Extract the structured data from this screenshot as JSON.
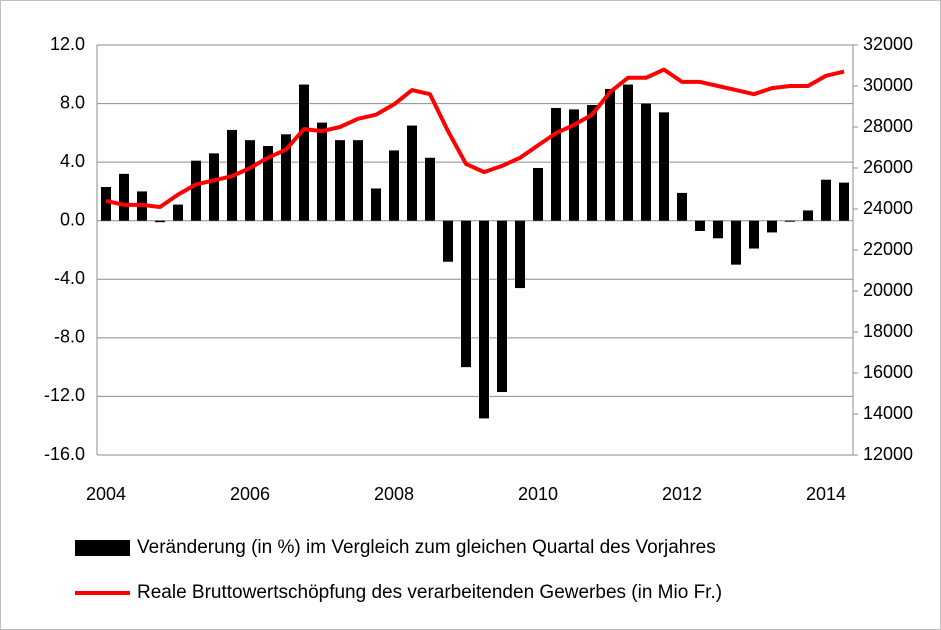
{
  "chart_data": {
    "type": "bar_line",
    "categories": [
      "2004",
      null,
      null,
      null,
      null,
      null,
      null,
      null,
      "2006",
      null,
      null,
      null,
      null,
      null,
      null,
      null,
      "2008",
      null,
      null,
      null,
      null,
      null,
      null,
      null,
      "2010",
      null,
      null,
      null,
      null,
      null,
      null,
      null,
      "2012",
      null,
      null,
      null,
      null,
      null,
      null,
      null,
      "2014",
      null
    ],
    "series": [
      {
        "name": "Veränderung (in %) im Vergleich zum gleichen Quartal des Vorjahres",
        "type": "bar",
        "color": "#000000",
        "values": [
          2.3,
          3.2,
          2.0,
          -0.1,
          1.1,
          4.1,
          4.6,
          6.2,
          5.5,
          5.1,
          5.9,
          9.3,
          6.7,
          5.5,
          5.5,
          2.2,
          4.8,
          6.5,
          4.3,
          -2.8,
          -10.0,
          -13.5,
          -11.7,
          -4.6,
          3.6,
          7.7,
          7.6,
          7.9,
          9.0,
          9.3,
          8.0,
          7.4,
          1.9,
          -0.7,
          -1.2,
          -3.0,
          -1.9,
          -0.8,
          0.0,
          0.7,
          2.8,
          2.6
        ]
      },
      {
        "name": "Reale Bruttowertschöpfung des verarbeitenden Gewerbes (in Mio Fr.)",
        "type": "line",
        "axis": "y2",
        "color": "#ff0000",
        "values": [
          24400,
          24200,
          24200,
          24100,
          24700,
          25200,
          25400,
          25600,
          26000,
          26500,
          26900,
          27900,
          27800,
          28000,
          28400,
          28600,
          29100,
          29800,
          29600,
          27800,
          26200,
          25800,
          26100,
          26500,
          27100,
          27700,
          28100,
          28600,
          29700,
          30400,
          30400,
          30800,
          30200,
          30200,
          30000,
          29800,
          29600,
          29900,
          30000,
          30000,
          30500,
          30700
        ]
      }
    ],
    "ylim": [
      -16,
      12
    ],
    "yticks": [
      {
        "value": -16,
        "label": "-16.0"
      },
      {
        "value": -12,
        "label": "-12.0"
      },
      {
        "value": -8,
        "label": "-8.0"
      },
      {
        "value": -4,
        "label": "-4.0"
      },
      {
        "value": 0,
        "label": "0.0"
      },
      {
        "value": 4,
        "label": "4.0"
      },
      {
        "value": 8,
        "label": "8.0"
      },
      {
        "value": 12,
        "label": "12.0"
      }
    ],
    "y2lim": [
      12000,
      32000
    ],
    "y2ticks": [
      12000,
      14000,
      16000,
      18000,
      20000,
      22000,
      24000,
      26000,
      28000,
      30000,
      32000
    ],
    "grid": true
  }
}
